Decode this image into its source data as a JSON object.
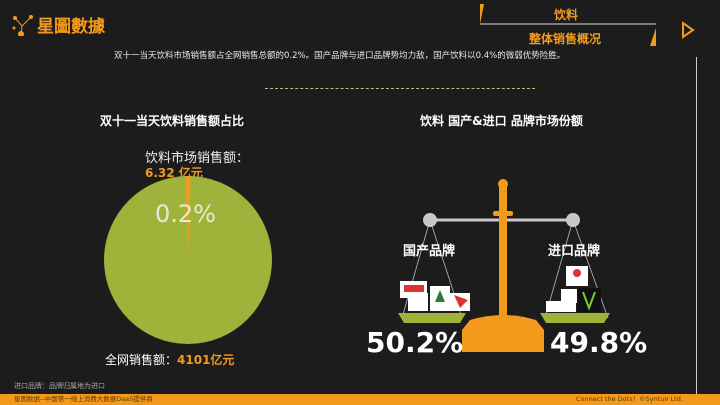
{
  "brand": {
    "name": "星圖數據"
  },
  "header": {
    "category": "饮料",
    "subtitle": "整体销售概况"
  },
  "description": "双十一当天饮料市场销售额占全网销售总额的0.2%。国产品牌与进口品牌势均力敌，国产饮料以0.4%的微弱优势险胜。",
  "left": {
    "title": "双十一当天饮料销售额占比",
    "drink_label": "饮料市场销售额：",
    "drink_value": "6.32 亿元",
    "pct": "0.2%",
    "total_label": "全网销售额：",
    "total_value": "4101亿元",
    "chart_data": {
      "type": "pie",
      "values": [
        6.32,
        4101
      ],
      "labels": [
        "饮料市场销售额",
        "全网销售额"
      ],
      "colors": [
        "#f39a1c",
        "#9fb23a"
      ]
    }
  },
  "right": {
    "title": "饮料 国产&进口 品牌市场份额",
    "domestic": {
      "label": "国产品牌",
      "pct": "50.2%"
    },
    "imported": {
      "label": "进口品牌",
      "pct": "49.8%"
    }
  },
  "note": "进口品牌：品牌归属地为进口",
  "footer": {
    "left": "星图数据--中国第一线上消费大数据DaaS提供商",
    "right": "Connect the Dots！©Syntun Ltd."
  },
  "colors": {
    "accent": "#f39a1c",
    "green": "#9fb23a"
  }
}
